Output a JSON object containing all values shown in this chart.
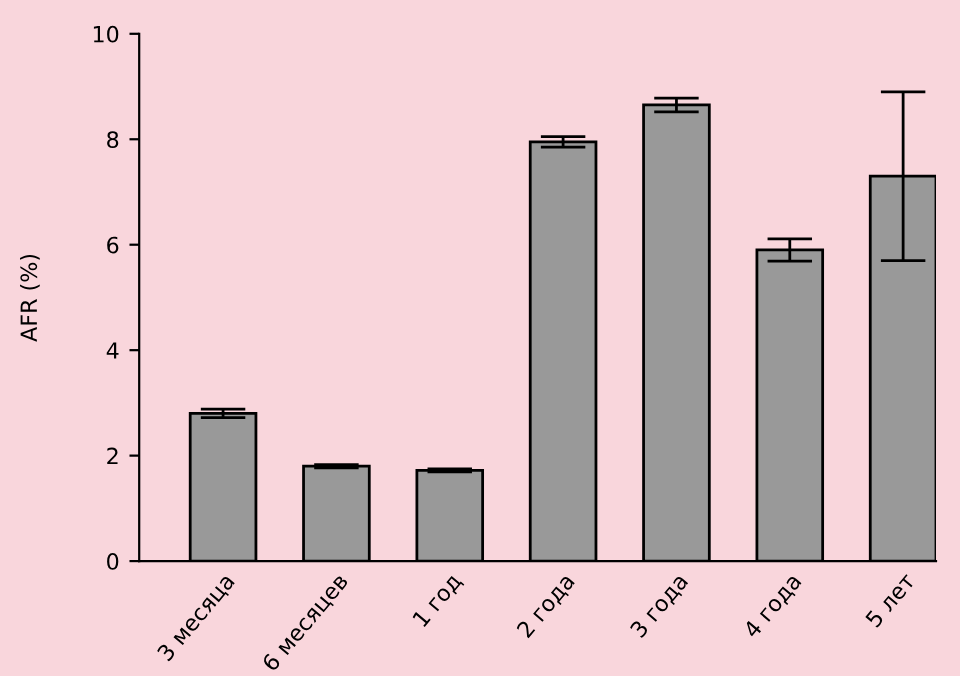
{
  "chart_data": {
    "type": "bar",
    "ylabel": "AFR (%)",
    "categories": [
      "3 месяца",
      "6 месяцев",
      "1 год",
      "2 года",
      "3 года",
      "4 года",
      "5 лет"
    ],
    "values": [
      2.8,
      1.8,
      1.72,
      7.95,
      8.65,
      5.9,
      7.3
    ],
    "errors": [
      0.08,
      0.03,
      0.03,
      0.1,
      0.13,
      0.21,
      1.6
    ],
    "color": "#999999",
    "ylim": [
      0,
      10
    ],
    "yticks": [
      0,
      2,
      4,
      6,
      8,
      10
    ],
    "grid": false,
    "legend": false
  }
}
